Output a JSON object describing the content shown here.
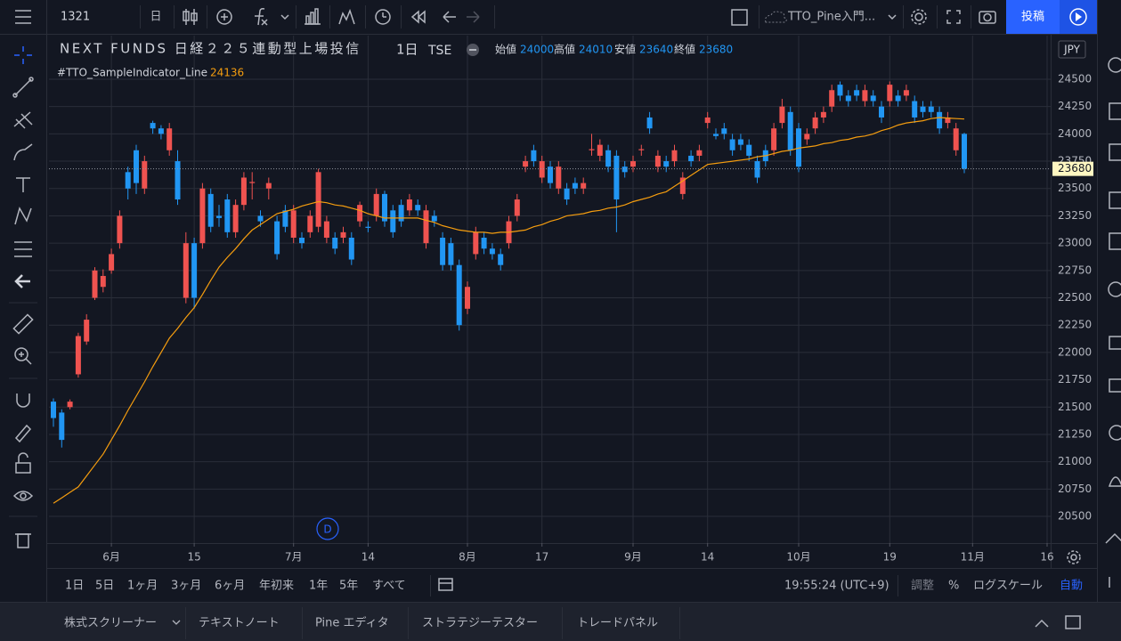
{
  "toolbar": {
    "symbol": "1321",
    "interval": "日",
    "layout_name": "TTO_Pine入門...",
    "publish": "投稿"
  },
  "chart_data": {
    "type": "candlestick",
    "title": "NEXT FUNDS 日経２２５連動型上場投信",
    "interval": "1日",
    "exchange": "TSE",
    "currency": "JPY",
    "legend_labels": [
      "始値",
      "高値",
      "安値",
      "終値"
    ],
    "marker": "D",
    "categories": [
      null,
      null,
      null,
      null,
      null,
      null,
      null,
      "6月",
      null,
      null,
      null,
      null,
      null,
      null,
      null,
      null,
      null,
      "15",
      null,
      null,
      null,
      null,
      null,
      null,
      null,
      null,
      null,
      null,
      null,
      "7月",
      null,
      null,
      null,
      null,
      null,
      null,
      null,
      null,
      "14",
      null,
      null,
      null,
      null,
      null,
      null,
      null,
      null,
      null,
      null,
      null,
      "8月",
      null,
      null,
      null,
      null,
      null,
      null,
      null,
      null,
      "17",
      null,
      null,
      null,
      null,
      null,
      null,
      null,
      null,
      null,
      null,
      "9月",
      null,
      null,
      null,
      null,
      null,
      null,
      null,
      null,
      "14",
      null,
      null,
      null,
      null,
      null,
      null,
      null,
      null,
      null,
      null,
      "10月",
      null,
      null,
      null,
      null,
      null,
      null,
      null,
      null,
      null,
      null,
      "19",
      null,
      null,
      null,
      null,
      null,
      null,
      null,
      null,
      null,
      "11月",
      null,
      null,
      null,
      null,
      null,
      null,
      null,
      null,
      "16"
    ],
    "open": [
      21550,
      21450,
      21500,
      21800,
      22100,
      22500,
      22600,
      22750,
      23000,
      23650,
      23850,
      23500,
      24100,
      24050,
      23850,
      23750,
      22500,
      23000,
      23000,
      23450,
      23250,
      23400,
      23100,
      23350,
      23550,
      23250,
      23500,
      23200,
      23300,
      23050,
      23050,
      23100,
      23150,
      23050,
      23050,
      23050,
      23050,
      23200,
      23150,
      23250,
      23450,
      23300,
      23350,
      23300,
      23350,
      23000,
      23250,
      23050,
      23000,
      22800,
      22400,
      22900,
      23050,
      22950,
      22900,
      23000,
      23250,
      23700,
      23850,
      23600,
      23700,
      23500,
      23500,
      23550,
      23500,
      23850,
      23800,
      23850,
      23800,
      23700,
      23700,
      23850,
      24150,
      23700,
      23750,
      23750,
      23450,
      23800,
      23800,
      24100,
      24000,
      24050,
      23950,
      23950,
      23900,
      23750,
      23850,
      23850,
      24100,
      24200,
      24050,
      23950,
      24050,
      24150,
      24250,
      24450,
      24350,
      24400,
      24300,
      24350,
      24250,
      24300,
      24350,
      24350,
      24300,
      24250,
      24250,
      24200,
      24100,
      23850,
      24000,
      null,
      null,
      null,
      null,
      null,
      null,
      null,
      null,
      null,
      null
    ],
    "high": [
      21580,
      21480,
      21570,
      22180,
      22350,
      22780,
      22760,
      22950,
      23300,
      23700,
      23900,
      23800,
      24120,
      24080,
      24100,
      23850,
      23100,
      23050,
      23550,
      23500,
      23350,
      23450,
      23400,
      23650,
      23650,
      23300,
      23600,
      23250,
      23350,
      23350,
      23100,
      23300,
      23680,
      23250,
      23100,
      23150,
      23100,
      23380,
      23200,
      23500,
      23480,
      23350,
      23400,
      23450,
      23400,
      23350,
      23300,
      23100,
      23050,
      22850,
      22650,
      23150,
      23100,
      23000,
      22950,
      23250,
      23450,
      23800,
      23900,
      23800,
      23750,
      23750,
      23550,
      23600,
      23600,
      24000,
      23950,
      23900,
      23850,
      23750,
      23800,
      23900,
      24200,
      23850,
      23800,
      23900,
      23650,
      23850,
      23900,
      24200,
      24050,
      24100,
      24000,
      24000,
      23950,
      23800,
      23900,
      24100,
      24320,
      24250,
      24100,
      24050,
      24200,
      24250,
      24450,
      24480,
      24400,
      24450,
      24450,
      24400,
      24300,
      24480,
      24400,
      24450,
      24350,
      24300,
      24300,
      24250,
      24200,
      24100,
      24010,
      null,
      null,
      null,
      null,
      null,
      null,
      null,
      null,
      null,
      null
    ],
    "low": [
      21320,
      21130,
      21480,
      21770,
      22070,
      22480,
      22550,
      22720,
      22950,
      23400,
      23450,
      23450,
      24000,
      23950,
      23800,
      23350,
      22450,
      22400,
      22950,
      23100,
      23150,
      23050,
      23050,
      23300,
      23400,
      23150,
      23400,
      22850,
      23100,
      23000,
      22950,
      23050,
      23100,
      23000,
      22900,
      23000,
      22800,
      23150,
      23100,
      23200,
      23150,
      23050,
      23150,
      23250,
      23250,
      22950,
      23150,
      22750,
      22750,
      22200,
      22350,
      22850,
      22900,
      22850,
      22750,
      22950,
      23200,
      23650,
      23700,
      23550,
      23500,
      23450,
      23350,
      23450,
      23450,
      23800,
      23750,
      23650,
      23100,
      23600,
      23650,
      23800,
      24000,
      23650,
      23650,
      23700,
      23400,
      23700,
      23750,
      24050,
      23950,
      23950,
      23800,
      23850,
      23750,
      23550,
      23700,
      23800,
      24050,
      23800,
      23650,
      23900,
      24000,
      24100,
      24200,
      24300,
      24250,
      24300,
      24250,
      24250,
      24100,
      24250,
      24250,
      24300,
      24100,
      24150,
      24150,
      24000,
      24050,
      23800,
      23640,
      null,
      null,
      null,
      null,
      null,
      null,
      null,
      null,
      null,
      null
    ],
    "close": [
      21400,
      21200,
      21550,
      22150,
      22300,
      22750,
      22700,
      22900,
      23250,
      23500,
      23550,
      23750,
      24050,
      24000,
      24050,
      23400,
      23000,
      22500,
      23500,
      23150,
      23230,
      23100,
      23350,
      23600,
      23560,
      23200,
      23550,
      22900,
      23150,
      23300,
      23000,
      23250,
      23650,
      23200,
      22950,
      23100,
      22850,
      23350,
      23140,
      23450,
      23200,
      23100,
      23200,
      23400,
      23300,
      23300,
      23200,
      22800,
      22800,
      22250,
      22600,
      23100,
      22950,
      22900,
      22800,
      23200,
      23400,
      23750,
      23750,
      23750,
      23550,
      23700,
      23400,
      23500,
      23550,
      23860,
      23900,
      23700,
      23400,
      23650,
      23750,
      23860,
      24050,
      23800,
      23700,
      23850,
      23600,
      23750,
      23850,
      24150,
      23980,
      24000,
      23850,
      23900,
      23800,
      23600,
      23750,
      24050,
      24250,
      23850,
      23700,
      24000,
      24150,
      24200,
      24400,
      24350,
      24300,
      24350,
      24400,
      24300,
      24150,
      24450,
      24300,
      24400,
      24150,
      24200,
      24200,
      24050,
      24150,
      24050,
      23680,
      null,
      null,
      null,
      null,
      null,
      null,
      null,
      null,
      null,
      null
    ],
    "up_color": "#ef5350",
    "down_color": "#2196f3",
    "series": [
      {
        "name": "#TTO_SampleIndicator_Line",
        "color": "#f59d0f",
        "values": [
          20620,
          20670,
          20720,
          20770,
          20870,
          20970,
          21070,
          21200,
          21330,
          21470,
          21600,
          21730,
          21870,
          22000,
          22130,
          22220,
          22320,
          22410,
          22530,
          22660,
          22780,
          22870,
          22950,
          23040,
          23120,
          23170,
          23220,
          23270,
          23290,
          23310,
          23340,
          23360,
          23380,
          23370,
          23350,
          23340,
          23320,
          23300,
          23270,
          23250,
          23230,
          23230,
          23230,
          23230,
          23230,
          23210,
          23190,
          23160,
          23140,
          23120,
          23110,
          23100,
          23100,
          23090,
          23100,
          23100,
          23110,
          23120,
          23150,
          23170,
          23200,
          23220,
          23250,
          23260,
          23270,
          23290,
          23300,
          23320,
          23330,
          23350,
          23380,
          23400,
          23420,
          23450,
          23470,
          23520,
          23570,
          23620,
          23670,
          23720,
          23730,
          23740,
          23750,
          23760,
          23770,
          23790,
          23800,
          23820,
          23840,
          23850,
          23870,
          23880,
          23890,
          23910,
          23920,
          23940,
          23950,
          23970,
          23980,
          24000,
          24030,
          24050,
          24080,
          24100,
          24110,
          24120,
          24140,
          24150,
          24145,
          24140,
          24136,
          null,
          null,
          null,
          null,
          null,
          null,
          null,
          null,
          null,
          null
        ]
      }
    ],
    "ylim": [
      20256,
      24899
    ],
    "yticks": [
      20500,
      20750,
      21000,
      21250,
      21500,
      21750,
      22000,
      22250,
      22500,
      22750,
      23000,
      23250,
      23500,
      23750,
      24000,
      24250,
      24500
    ],
    "grid": true
  },
  "bottom_toolbar": {
    "ranges": [
      "1日",
      "5日",
      "1ヶ月",
      "3ヶ月",
      "6ヶ月",
      "年初来",
      "1年",
      "5年",
      "すべて"
    ],
    "time": "19:55:24 (UTC+9)",
    "options": [
      "調整",
      "%",
      "ログスケール",
      "自動"
    ]
  },
  "tabs": [
    "株式スクリーナー",
    "テキストノート",
    "Pine エディタ",
    "ストラテジーテスター",
    "トレードパネル"
  ]
}
